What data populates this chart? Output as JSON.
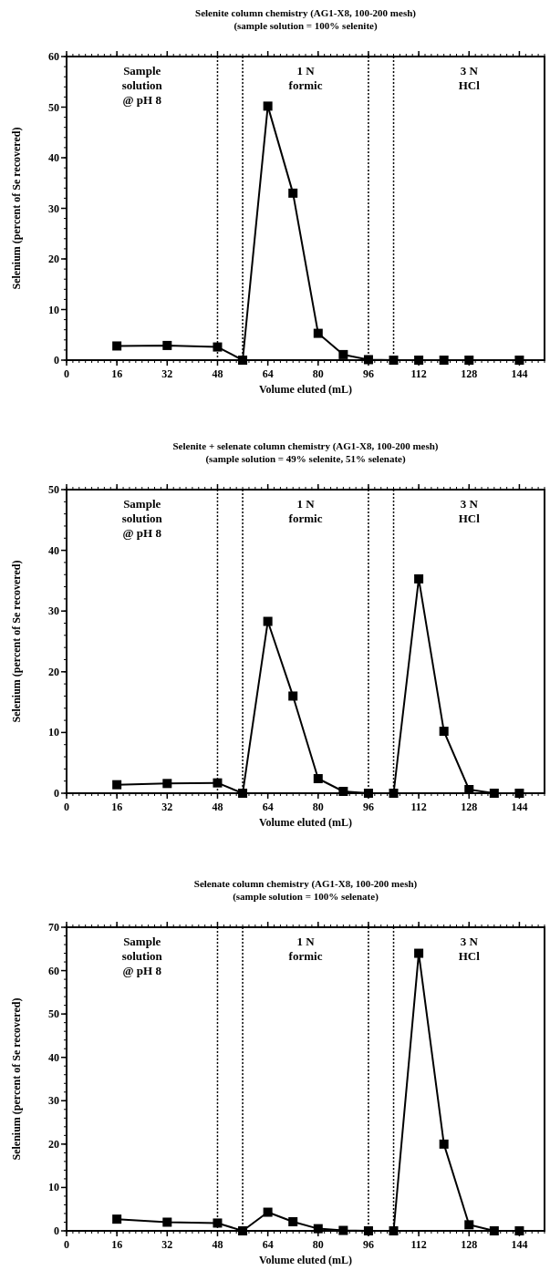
{
  "chart_data": [
    {
      "type": "line",
      "title": "Selenite column chemistry (AG1-X8, 100-200 mesh)",
      "subtitle": "(sample solution = 100% selenite)",
      "xlabel": "Volume eluted (mL)",
      "ylabel": "Selenium (percent of Se recovered)",
      "xlim": [
        0,
        152
      ],
      "xticks": [
        0,
        16,
        32,
        48,
        64,
        80,
        96,
        112,
        128,
        144
      ],
      "ylim": [
        0,
        60
      ],
      "yticks": [
        0,
        10,
        20,
        30,
        40,
        50,
        60
      ],
      "marker": "square",
      "line_style": "solid",
      "series": [
        {
          "color": "#000000",
          "x": [
            16,
            32,
            48,
            56,
            64,
            72,
            80,
            88,
            96,
            104,
            112,
            120,
            128,
            144
          ],
          "values": [
            2.8,
            2.9,
            2.6,
            0,
            50.2,
            33,
            5.3,
            1.1,
            0.1,
            0,
            0,
            0,
            0,
            0
          ]
        }
      ],
      "ref_lines": [
        {
          "axis": "x",
          "value": 48,
          "line_style": "dotted"
        },
        {
          "axis": "x",
          "value": 56,
          "line_style": "dotted"
        },
        {
          "axis": "x",
          "value": 96,
          "line_style": "dotted"
        },
        {
          "axis": "x",
          "value": 104,
          "line_style": "dotted"
        }
      ],
      "annotations": [
        "Sample\nsolution\n@ pH 8",
        "1 N\nformic",
        "3 N\nHCl"
      ]
    },
    {
      "type": "line",
      "title": "Selenite + selenate column chemistry (AG1-X8, 100-200 mesh)",
      "subtitle": "(sample solution = 49% selenite, 51% selenate)",
      "xlabel": "Volume eluted (mL)",
      "ylabel": "Selenium (percent of Se recovered)",
      "xlim": [
        0,
        152
      ],
      "xticks": [
        0,
        16,
        32,
        48,
        64,
        80,
        96,
        112,
        128,
        144
      ],
      "ylim": [
        0,
        50
      ],
      "yticks": [
        0,
        10,
        20,
        30,
        40,
        50
      ],
      "marker": "square",
      "line_style": "solid",
      "series": [
        {
          "color": "#000000",
          "x": [
            16,
            32,
            48,
            56,
            64,
            72,
            80,
            88,
            96,
            104,
            112,
            120,
            128,
            136,
            144
          ],
          "values": [
            1.4,
            1.6,
            1.7,
            0,
            28.3,
            16,
            2.4,
            0.3,
            0,
            0,
            35.3,
            10.2,
            0.6,
            0,
            0
          ]
        }
      ],
      "ref_lines": [
        {
          "axis": "x",
          "value": 48,
          "line_style": "dotted"
        },
        {
          "axis": "x",
          "value": 56,
          "line_style": "dotted"
        },
        {
          "axis": "x",
          "value": 96,
          "line_style": "dotted"
        },
        {
          "axis": "x",
          "value": 104,
          "line_style": "dotted"
        }
      ],
      "annotations": [
        "Sample\nsolution\n@ pH 8",
        "1 N\nformic",
        "3 N\nHCl"
      ]
    },
    {
      "type": "line",
      "title": "Selenate column chemistry (AG1-X8, 100-200 mesh)",
      "subtitle": "(sample solution = 100% selenate)",
      "xlabel": "Volume eluted (mL)",
      "ylabel": "Selenium (percent of Se recovered)",
      "xlim": [
        0,
        152
      ],
      "xticks": [
        0,
        16,
        32,
        48,
        64,
        80,
        96,
        112,
        128,
        144
      ],
      "ylim": [
        0,
        70
      ],
      "yticks": [
        0,
        10,
        20,
        30,
        40,
        50,
        60,
        70
      ],
      "marker": "square",
      "line_style": "solid",
      "series": [
        {
          "color": "#000000",
          "x": [
            16,
            32,
            48,
            56,
            64,
            72,
            80,
            88,
            96,
            104,
            112,
            120,
            128,
            136,
            144
          ],
          "values": [
            2.7,
            2,
            1.8,
            0,
            4.3,
            2.1,
            0.5,
            0.1,
            0,
            0,
            64,
            20,
            1.4,
            0,
            0
          ]
        }
      ],
      "ref_lines": [
        {
          "axis": "x",
          "value": 48,
          "line_style": "dotted"
        },
        {
          "axis": "x",
          "value": 56,
          "line_style": "dotted"
        },
        {
          "axis": "x",
          "value": 96,
          "line_style": "dotted"
        },
        {
          "axis": "x",
          "value": 104,
          "line_style": "dotted"
        }
      ],
      "annotations": [
        "Sample\nsolution\n@ pH 8",
        "1 N\nformic",
        "3 N\nHCl"
      ]
    }
  ]
}
